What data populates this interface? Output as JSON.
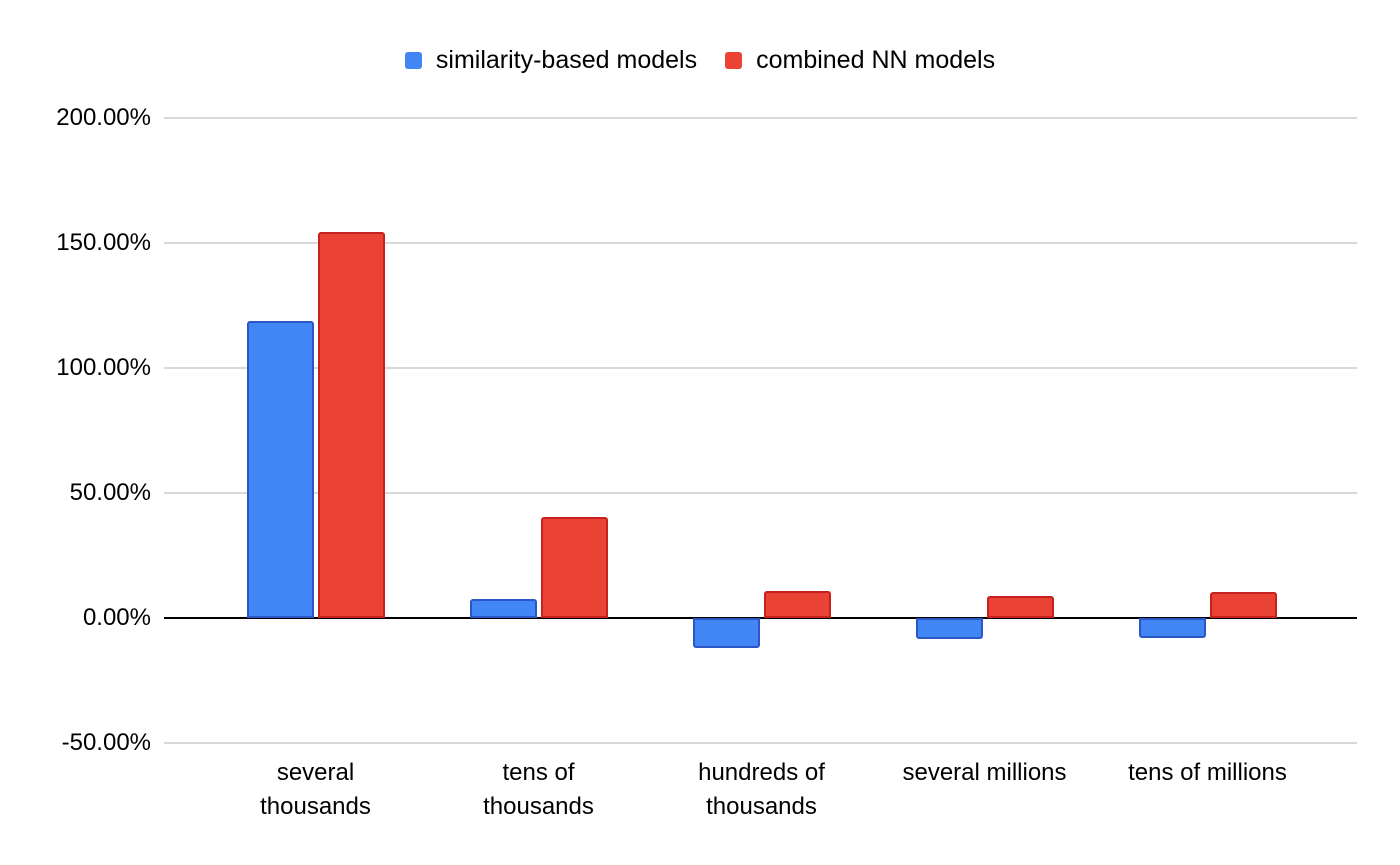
{
  "chart_data": {
    "type": "bar",
    "title": "",
    "xlabel": "",
    "ylabel": "",
    "categories": [
      "several thousands",
      "tens of thousands",
      "hundreds of thousands",
      "several millions",
      "tens of millions"
    ],
    "x_tick_lines": [
      [
        "several",
        "thousands"
      ],
      [
        "tens of",
        "thousands"
      ],
      [
        "hundreds of",
        "thousands"
      ],
      [
        "several millions"
      ],
      [
        "tens of millions"
      ]
    ],
    "series": [
      {
        "name": "similarity-based models",
        "color": "#4285f4",
        "border_color": "#2a56c6",
        "values": [
          119,
          7.5,
          -12,
          -8.5,
          -8
        ]
      },
      {
        "name": "combined NN models",
        "color": "#ea4335",
        "border_color": "#c5221f",
        "values": [
          154.5,
          40.5,
          11,
          9,
          10.5
        ]
      }
    ],
    "value_unit": "%",
    "ylim": [
      -50,
      200
    ],
    "yticks": [
      {
        "value": 200,
        "label": "200.00%"
      },
      {
        "value": 150,
        "label": "150.00%"
      },
      {
        "value": 100,
        "label": "100.00%"
      },
      {
        "value": 50,
        "label": "50.00%"
      },
      {
        "value": 0,
        "label": "0.00%"
      },
      {
        "value": -50,
        "label": "-50.00%"
      }
    ],
    "grid": true,
    "legend_position": "top-center",
    "colors": {
      "background": "#ffffff",
      "gridline": "#d9d9d9",
      "zero_axis": "#000000",
      "text": "#000000"
    }
  }
}
